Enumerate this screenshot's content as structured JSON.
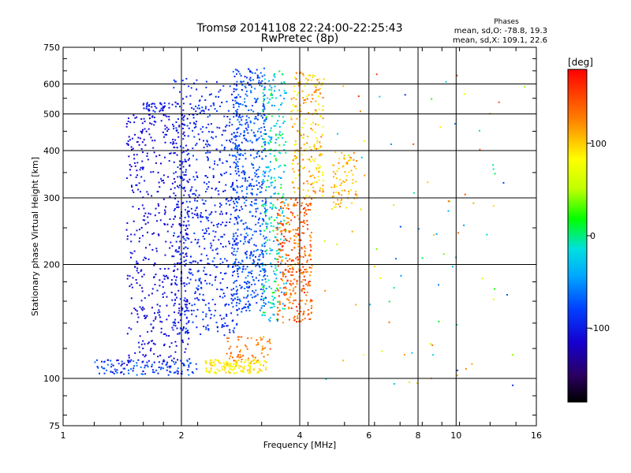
{
  "chart_data": {
    "type": "scatter",
    "title": "Tromsø 20141108 22:24:00-22:25:43",
    "subtitle": "RwPretec (8p)",
    "xlabel": "Frequency [MHz]",
    "ylabel": "Stationary phase Virtual Height [km]",
    "x_scale": "log",
    "y_scale": "log",
    "xlim": [
      1,
      16
    ],
    "ylim": [
      75,
      750
    ],
    "x_ticks": [
      {
        "value": 1,
        "label": "1"
      },
      {
        "value": 2,
        "label": "2"
      },
      {
        "value": 4,
        "label": "4"
      },
      {
        "value": 6,
        "label": "6"
      },
      {
        "value": 8,
        "label": "8"
      },
      {
        "value": 10,
        "label": "10"
      },
      {
        "value": 16,
        "label": "16"
      }
    ],
    "y_ticks": [
      {
        "value": 75,
        "label": "75"
      },
      {
        "value": 100,
        "label": "100"
      },
      {
        "value": 200,
        "label": "200"
      },
      {
        "value": 300,
        "label": "300"
      },
      {
        "value": 400,
        "label": "400"
      },
      {
        "value": 500,
        "label": "500"
      },
      {
        "value": 600,
        "label": "600"
      },
      {
        "value": 750,
        "label": "750"
      }
    ],
    "grid": true,
    "colorbar": {
      "label": "[deg]",
      "range": [
        -180,
        180
      ],
      "ticks": [
        {
          "value": 100,
          "label": "100"
        },
        {
          "value": 0,
          "label": "0"
        },
        {
          "value": -100,
          "label": "-100"
        }
      ]
    },
    "stats_box": {
      "title": "Phases",
      "line_o": "mean, sd,O: -78.8, 19.3",
      "line_x": "mean, sd,X: 109.1, 22.6"
    },
    "clusters": [
      {
        "fmin": 1.45,
        "fmax": 2.1,
        "hmin": 110,
        "hmax": 500,
        "phase": [
          -120,
          -100
        ],
        "n": 520
      },
      {
        "fmin": 1.9,
        "fmax": 2.8,
        "hmin": 130,
        "hmax": 620,
        "phase": [
          -110,
          -80
        ],
        "n": 650
      },
      {
        "fmin": 2.7,
        "fmax": 3.3,
        "hmin": 150,
        "hmax": 660,
        "phase": [
          -100,
          -60
        ],
        "n": 600
      },
      {
        "fmin": 3.2,
        "fmax": 3.7,
        "hmin": 140,
        "hmax": 650,
        "phase": [
          -60,
          20
        ],
        "n": 300
      },
      {
        "fmin": 3.5,
        "fmax": 4.3,
        "hmin": 140,
        "hmax": 300,
        "phase": [
          110,
          165
        ],
        "n": 340
      },
      {
        "fmin": 3.8,
        "fmax": 4.6,
        "hmin": 300,
        "hmax": 650,
        "phase": [
          70,
          140
        ],
        "n": 220
      },
      {
        "fmin": 4.8,
        "fmax": 5.6,
        "hmin": 280,
        "hmax": 400,
        "phase": [
          90,
          130
        ],
        "n": 80
      },
      {
        "fmin": 2.3,
        "fmax": 3.3,
        "hmin": 103,
        "hmax": 112,
        "phase": [
          70,
          110
        ],
        "n": 140
      },
      {
        "fmin": 1.2,
        "fmax": 2.2,
        "hmin": 102,
        "hmax": 112,
        "phase": [
          -120,
          -60
        ],
        "n": 120
      },
      {
        "fmin": 1.6,
        "fmax": 1.9,
        "hmin": 505,
        "hmax": 535,
        "phase": [
          -110,
          -95
        ],
        "n": 40
      },
      {
        "fmin": 2.6,
        "fmax": 3.4,
        "hmin": 110,
        "hmax": 130,
        "phase": [
          110,
          150
        ],
        "n": 60
      }
    ],
    "sparse_scatter": {
      "fmin": 4.6,
      "fmax": 15,
      "hmin": 95,
      "hmax": 660,
      "phase": [
        -90,
        160
      ],
      "n": 90
    }
  }
}
